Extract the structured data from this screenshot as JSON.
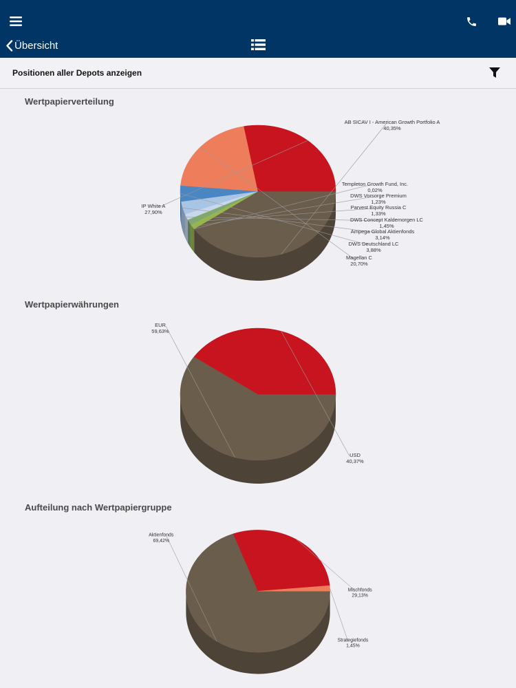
{
  "header": {
    "back_label": "Übersicht",
    "icons": [
      "menu-icon",
      "phone-icon",
      "video-icon",
      "list-icon",
      "back-chevron-icon"
    ],
    "colors": {
      "bar": "#003566",
      "background": "#efeff4"
    }
  },
  "filter": {
    "label": "Positionen aller Depots anzeigen",
    "icon": "filter-icon"
  },
  "chart_data": [
    {
      "type": "pie",
      "title": "Wertpapierverteilung",
      "slices": [
        {
          "name": "AB SICAV I - American Growth Portfolio A",
          "value": 40.35,
          "label": "40,35%",
          "color": "#6b5d4c"
        },
        {
          "name": "Templeton Growth Fund, Inc.",
          "value": 0.02,
          "label": "0,02%",
          "color": "#7d8f5c"
        },
        {
          "name": "DWS Vorsorge Premium",
          "value": 1.23,
          "label": "1,23%",
          "color": "#98b74a"
        },
        {
          "name": "Parvest Equity Russia C",
          "value": 1.33,
          "label": "1,33%",
          "color": "#7fa86e"
        },
        {
          "name": "DWS Concept Kaldemorgen LC",
          "value": 1.45,
          "label": "1,45%",
          "color": "#c8d8ea"
        },
        {
          "name": "Ampega Global Aktienfonds",
          "value": 3.14,
          "label": "3,14%",
          "color": "#a9c5e6"
        },
        {
          "name": "DWS Deutschland LC",
          "value": 3.88,
          "label": "3,88%",
          "color": "#4a86c2"
        },
        {
          "name": "Magellan C",
          "value": 20.7,
          "label": "20,70%",
          "color": "#ee7d5b"
        },
        {
          "name": "IP White A",
          "value": 27.9,
          "label": "27,90%",
          "color": "#c8141e"
        }
      ]
    },
    {
      "type": "pie",
      "title": "Wertpapierwährungen",
      "slices": [
        {
          "name": "EUR",
          "value": 59.63,
          "label": "59,63%",
          "color": "#6b5d4c"
        },
        {
          "name": "USD",
          "value": 40.37,
          "label": "40,37%",
          "color": "#c8141e"
        }
      ]
    },
    {
      "type": "pie",
      "title": "Aufteilung nach Wertpapiergruppe",
      "slices": [
        {
          "name": "Aktienfonds",
          "value": 69.42,
          "label": "69,42%",
          "color": "#6b5d4c"
        },
        {
          "name": "Mischfonds",
          "value": 29.13,
          "label": "29,13%",
          "color": "#c8141e"
        },
        {
          "name": "Strategiefonds",
          "value": 1.45,
          "label": "1,45%",
          "color": "#ee7d5b"
        }
      ]
    }
  ]
}
